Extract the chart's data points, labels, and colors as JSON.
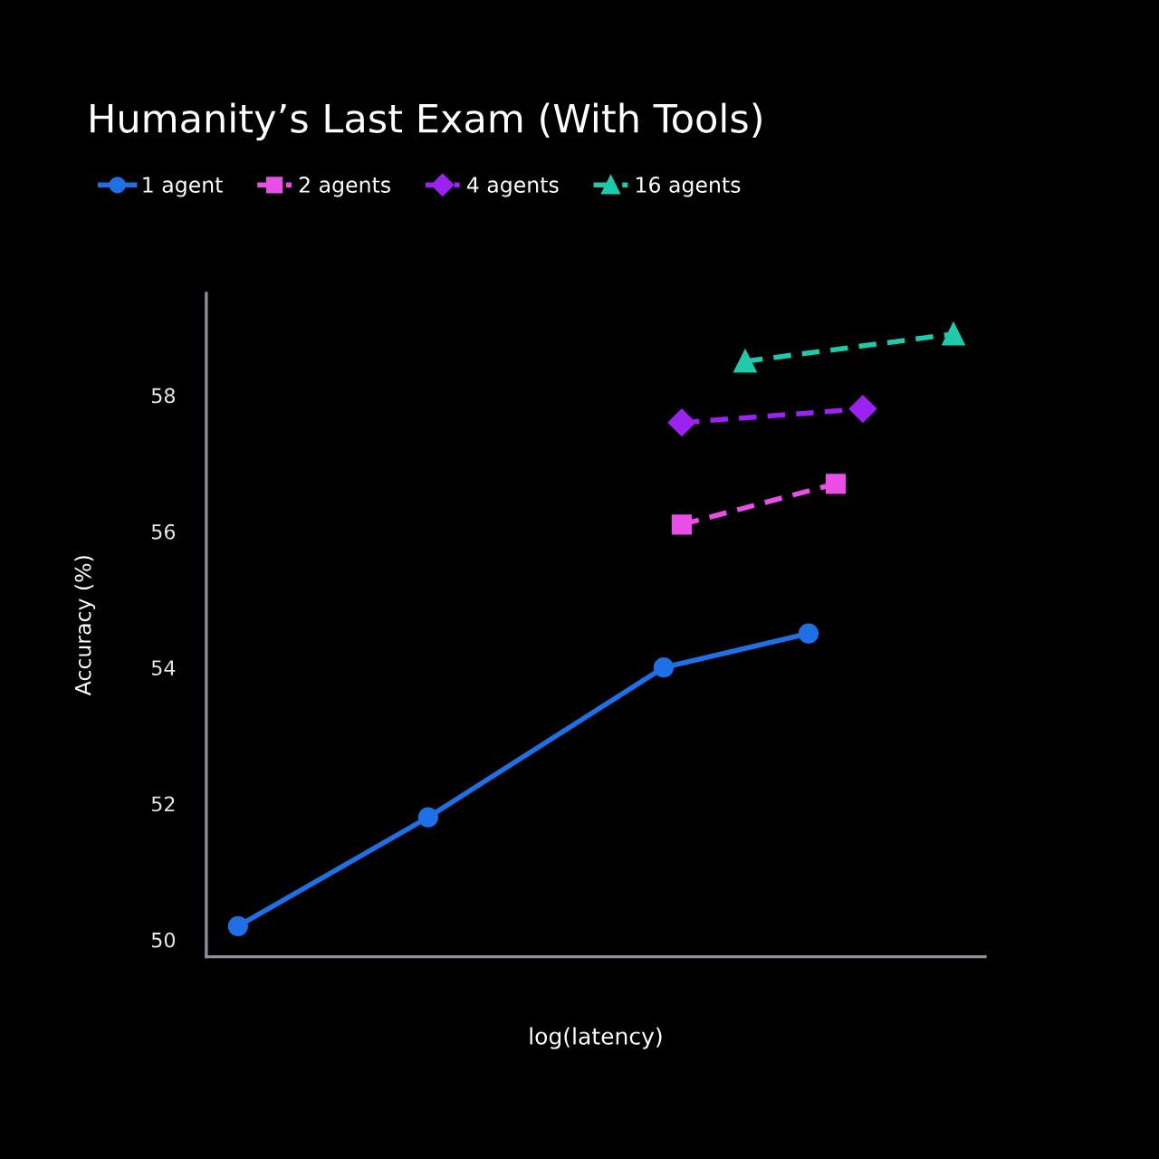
{
  "chart_data": {
    "type": "line",
    "title": "Humanity’s Last Exam (With Tools)",
    "xlabel": "log(latency)",
    "ylabel": "Accuracy (%)",
    "categories": [
      null,
      null,
      null,
      null,
      null,
      null,
      null,
      null,
      null,
      null,
      null,
      null,
      null,
      null,
      null,
      null,
      null,
      null,
      null,
      null,
      null,
      null,
      null,
      null,
      null,
      null,
      null,
      null,
      null,
      null,
      null,
      null,
      null,
      null,
      null,
      null,
      null,
      null,
      null,
      null,
      null,
      null,
      null,
      null,
      null,
      null,
      null,
      null,
      null,
      null,
      null,
      null,
      null,
      null,
      null,
      null,
      null,
      null,
      null,
      null,
      null,
      null,
      null,
      null,
      null,
      null,
      null,
      null,
      null,
      null,
      null,
      null,
      null,
      null,
      null,
      null,
      null,
      null,
      null,
      null,
      null,
      null,
      null,
      null,
      null,
      null
    ],
    "ylim": [
      49.75,
      59.5
    ],
    "yticks": [
      50,
      52,
      54,
      56,
      58
    ],
    "tick_labels": "y",
    "legend": "top left",
    "series": [
      {
        "name": "1 agent",
        "color": "#1f6fe5",
        "marker": "circle",
        "line_style": "solid",
        "values": [
          null,
          null,
          null,
          50.2,
          null,
          null,
          null,
          null,
          null,
          null,
          null,
          null,
          null,
          null,
          null,
          null,
          null,
          null,
          null,
          null,
          null,
          null,
          null,
          null,
          51.8,
          null,
          null,
          null,
          null,
          null,
          null,
          null,
          null,
          null,
          null,
          null,
          null,
          null,
          null,
          null,
          null,
          null,
          null,
          null,
          null,
          null,
          null,
          null,
          null,
          null,
          54.0,
          null,
          null,
          null,
          null,
          null,
          null,
          null,
          null,
          null,
          null,
          null,
          null,
          null,
          null,
          null,
          54.5,
          null,
          null,
          null,
          null,
          null,
          null,
          null,
          null,
          null,
          null,
          null,
          null,
          null,
          null,
          null,
          null,
          null,
          null,
          null
        ]
      },
      {
        "name": "2 agents",
        "color": "#e84fe6",
        "marker": "square",
        "line_style": "dashed",
        "values": [
          null,
          null,
          null,
          null,
          null,
          null,
          null,
          null,
          null,
          null,
          null,
          null,
          null,
          null,
          null,
          null,
          null,
          null,
          null,
          null,
          null,
          null,
          null,
          null,
          null,
          null,
          null,
          null,
          null,
          null,
          null,
          null,
          null,
          null,
          null,
          null,
          null,
          null,
          null,
          null,
          null,
          null,
          null,
          null,
          null,
          null,
          null,
          null,
          null,
          null,
          null,
          null,
          56.1,
          null,
          null,
          null,
          null,
          null,
          null,
          null,
          null,
          null,
          null,
          null,
          null,
          null,
          null,
          null,
          null,
          56.7,
          null,
          null,
          null,
          null,
          null,
          null,
          null,
          null,
          null,
          null,
          null,
          null,
          null,
          null,
          null,
          null
        ]
      },
      {
        "name": "4 agents",
        "color": "#9b22f0",
        "marker": "diamond",
        "line_style": "dashed",
        "values": [
          null,
          null,
          null,
          null,
          null,
          null,
          null,
          null,
          null,
          null,
          null,
          null,
          null,
          null,
          null,
          null,
          null,
          null,
          null,
          null,
          null,
          null,
          null,
          null,
          null,
          null,
          null,
          null,
          null,
          null,
          null,
          null,
          null,
          null,
          null,
          null,
          null,
          null,
          null,
          null,
          null,
          null,
          null,
          null,
          null,
          null,
          null,
          null,
          null,
          null,
          null,
          null,
          57.6,
          null,
          null,
          null,
          null,
          null,
          null,
          null,
          null,
          null,
          null,
          null,
          null,
          null,
          null,
          null,
          null,
          null,
          null,
          null,
          57.8,
          null,
          null,
          null,
          null,
          null,
          null,
          null,
          null,
          null,
          null,
          null,
          null,
          null
        ]
      },
      {
        "name": "16 agents",
        "color": "#1fc9a9",
        "marker": "triangle",
        "line_style": "dashed",
        "values": [
          null,
          null,
          null,
          null,
          null,
          null,
          null,
          null,
          null,
          null,
          null,
          null,
          null,
          null,
          null,
          null,
          null,
          null,
          null,
          null,
          null,
          null,
          null,
          null,
          null,
          null,
          null,
          null,
          null,
          null,
          null,
          null,
          null,
          null,
          null,
          null,
          null,
          null,
          null,
          null,
          null,
          null,
          null,
          null,
          null,
          null,
          null,
          null,
          null,
          null,
          null,
          null,
          null,
          null,
          null,
          null,
          null,
          null,
          null,
          58.5,
          null,
          null,
          null,
          null,
          null,
          null,
          null,
          null,
          null,
          null,
          null,
          null,
          null,
          null,
          null,
          null,
          null,
          null,
          null,
          null,
          null,
          null,
          58.9,
          null,
          null,
          null
        ]
      }
    ]
  }
}
